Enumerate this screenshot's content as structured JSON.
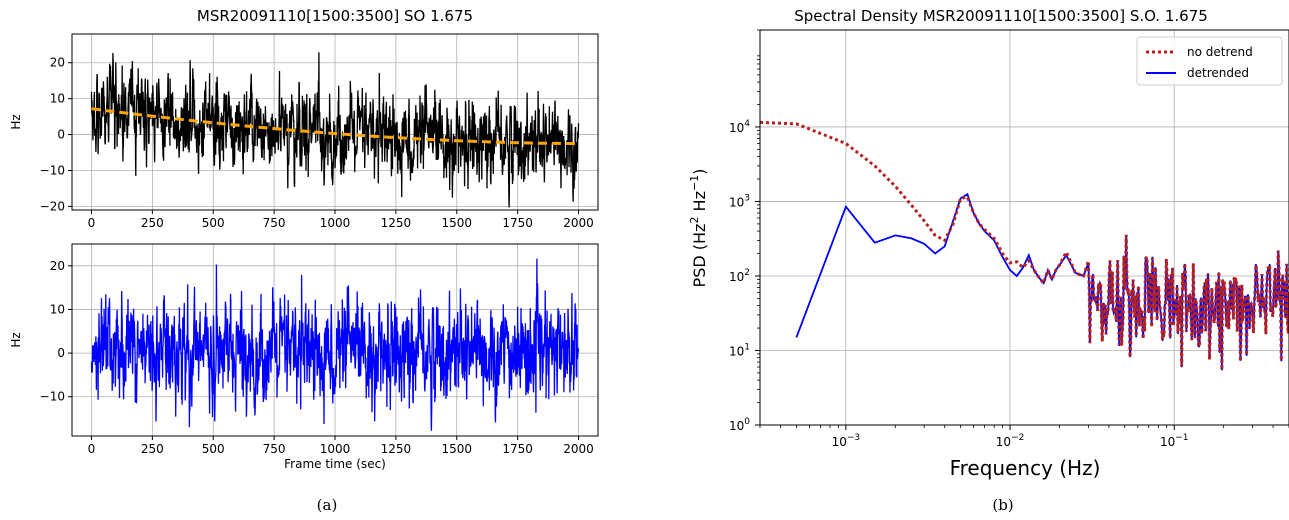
{
  "chart_data": [
    {
      "type": "line",
      "title": "MSR20091110[1500:3500] SO 1.675",
      "xlabel": "",
      "ylabel": "Hz",
      "xlim": [
        -80,
        2080
      ],
      "ylim": [
        -21,
        28
      ],
      "xticks": [
        0,
        250,
        500,
        750,
        1000,
        1250,
        1500,
        1750,
        2000
      ],
      "xtick_labels": [
        "0",
        "250",
        "500",
        "750",
        "1000",
        "1250",
        "1500",
        "1750",
        "2000"
      ],
      "yticks": [
        -20,
        -10,
        0,
        10,
        20
      ],
      "ytick_labels": [
        "−20",
        "−10",
        "0",
        "10",
        "20"
      ],
      "grid": true,
      "series": [
        {
          "color": "#000000",
          "style": "solid",
          "noise_amplitude": 5.5,
          "trend_from": 7.5,
          "trend_to": -2.8,
          "x_range": [
            0,
            2000
          ]
        },
        {
          "color": "#ffa500",
          "style": "dashed",
          "x_range": [
            0,
            2000
          ],
          "trend_from": 7.2,
          "trend_to": -2.5
        }
      ]
    },
    {
      "type": "line",
      "title": "",
      "xlabel": "Frame time (sec)",
      "ylabel": "Hz",
      "xlim": [
        -80,
        2080
      ],
      "ylim": [
        -19,
        25
      ],
      "xticks": [
        0,
        250,
        500,
        750,
        1000,
        1250,
        1500,
        1750,
        2000
      ],
      "xtick_labels": [
        "0",
        "250",
        "500",
        "750",
        "1000",
        "1250",
        "1500",
        "1750",
        "2000"
      ],
      "yticks": [
        -10,
        0,
        10,
        20
      ],
      "ytick_labels": [
        "−10",
        "0",
        "10",
        "20"
      ],
      "grid": true,
      "series": [
        {
          "color": "#0000ff",
          "style": "solid",
          "noise_amplitude": 5.5,
          "x_range": [
            0,
            2000
          ]
        }
      ]
    },
    {
      "type": "line",
      "title": "Spectral Density MSR20091110[1500:3500] S.O. 1.675",
      "xlabel": "Frequency (Hz)",
      "ylabel": "PSD (Hz",
      "ylabel_sup1": "2",
      "ylabel_mid": " Hz",
      "ylabel_sup2": "−1",
      "ylabel_end": ")",
      "xscale": "log",
      "yscale": "log",
      "xlim": [
        0.0003,
        0.5
      ],
      "ylim": [
        1,
        200000
      ],
      "xticks": [
        0.001,
        0.01,
        0.1
      ],
      "xtick_labels": [
        [
          "10",
          "−3"
        ],
        [
          "10",
          "−2"
        ],
        [
          "10",
          "−1"
        ]
      ],
      "yticks": [
        1,
        10,
        100,
        1000,
        10000
      ],
      "ytick_labels": [
        [
          "10",
          "0"
        ],
        [
          "10",
          "1"
        ],
        [
          "10",
          "2"
        ],
        [
          "10",
          "3"
        ],
        [
          "10",
          "4"
        ]
      ],
      "grid": true,
      "legend_position": "top-right",
      "series": [
        {
          "name": "no detrend",
          "color": "#b22222",
          "style": "dotted",
          "x": [
            0.0003,
            0.0005,
            0.001,
            0.0015,
            0.002,
            0.0025,
            0.003,
            0.0035,
            0.004,
            0.0045,
            0.005,
            0.0055,
            0.006,
            0.0065,
            0.007,
            0.008,
            0.009,
            0.01,
            0.011,
            0.012,
            0.013,
            0.014,
            0.015,
            0.016,
            0.017,
            0.018,
            0.019,
            0.02,
            0.022,
            0.025,
            0.028,
            0.03
          ],
          "y": [
            11500,
            11000,
            6000,
            3000,
            1600,
            900,
            550,
            350,
            300,
            500,
            1100,
            1150,
            700,
            500,
            420,
            320,
            200,
            150,
            155,
            130,
            160,
            120,
            95,
            80,
            120,
            90,
            120,
            140,
            210,
            110,
            100,
            160
          ]
        },
        {
          "name": "detrended",
          "color": "#0000ff",
          "style": "solid",
          "x": [
            0.0005,
            0.001,
            0.0015,
            0.002,
            0.0025,
            0.003,
            0.0035,
            0.004,
            0.0045,
            0.005,
            0.0055,
            0.006,
            0.0065,
            0.007,
            0.008,
            0.009,
            0.01,
            0.011,
            0.012,
            0.013,
            0.014,
            0.015,
            0.016,
            0.017,
            0.018,
            0.019,
            0.02,
            0.022,
            0.025,
            0.028,
            0.03
          ],
          "y": [
            15,
            850,
            280,
            350,
            320,
            270,
            200,
            250,
            550,
            1100,
            1250,
            700,
            500,
            400,
            300,
            180,
            120,
            100,
            130,
            190,
            120,
            95,
            80,
            120,
            90,
            120,
            140,
            190,
            110,
            100,
            150
          ],
          "noise_tail": {
            "from_x": 0.03,
            "to_x": 0.5,
            "center": 45,
            "spread_decades": 0.25
          }
        }
      ]
    }
  ],
  "captions": {
    "a": "(a)",
    "b": "(b)"
  }
}
